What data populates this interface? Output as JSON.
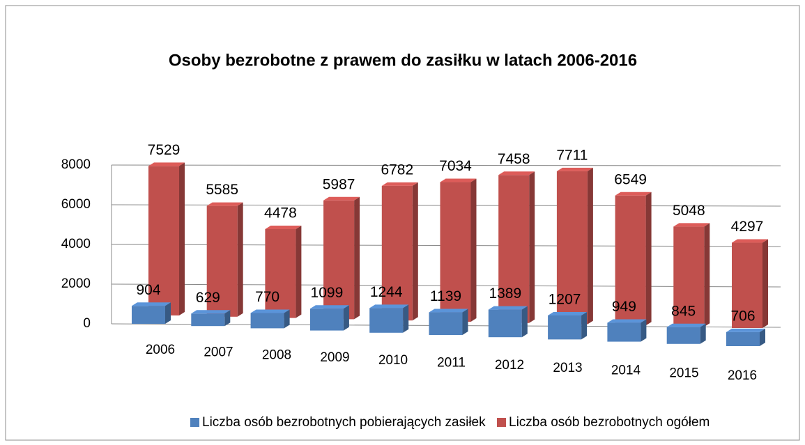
{
  "chart_data": {
    "type": "bar3d",
    "title": "Osoby bezrobotne z prawem do zasiłku w latach 2006-2016",
    "categories": [
      "2006",
      "2007",
      "2008",
      "2009",
      "2010",
      "2011",
      "2012",
      "2013",
      "2014",
      "2015",
      "2016"
    ],
    "series": [
      {
        "name": "Liczba osób bezrobotnych pobierających zasiłek",
        "color": "#4f81bd",
        "values": [
          904,
          629,
          770,
          1099,
          1244,
          1139,
          1389,
          1207,
          949,
          845,
          706
        ]
      },
      {
        "name": "Liczba osób bezrobotnych ogółem",
        "color": "#c0504d",
        "values": [
          7529,
          5585,
          4478,
          5987,
          6782,
          7034,
          7458,
          7711,
          6549,
          5048,
          4297
        ]
      }
    ],
    "ylim": [
      0,
      8000
    ],
    "yticks": [
      0,
      2000,
      4000,
      6000,
      8000
    ],
    "grid": true,
    "legend": "bottom"
  }
}
